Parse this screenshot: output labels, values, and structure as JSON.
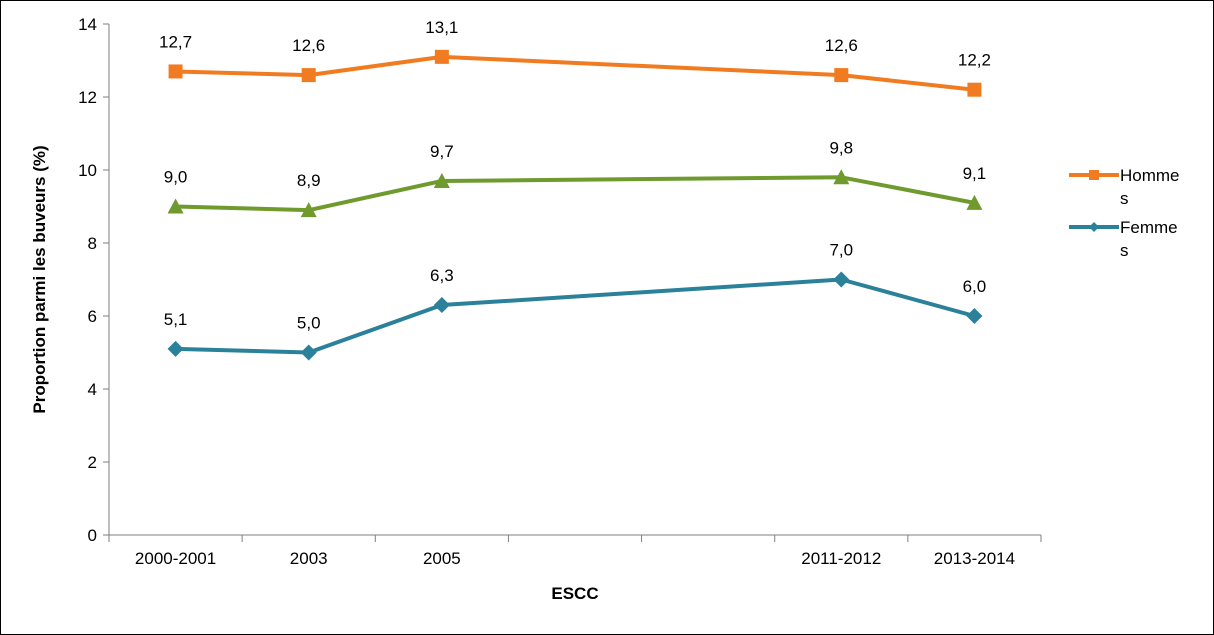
{
  "chart_data": {
    "type": "line",
    "categories": [
      "2000-2001",
      "2003",
      "2005",
      "",
      "",
      "2011-2012",
      "2013-2014"
    ],
    "series": [
      {
        "name": "Hommes",
        "values": [
          12.7,
          12.6,
          13.1,
          null,
          null,
          12.6,
          12.2
        ],
        "labels": [
          "12,7",
          "12,6",
          "13,1",
          "",
          "",
          "12,6",
          "12,2"
        ],
        "color": "#F07B20",
        "marker": "square"
      },
      {
        "name": "",
        "values": [
          9.0,
          8.9,
          9.7,
          null,
          null,
          9.8,
          9.1
        ],
        "labels": [
          "9,0",
          "8,9",
          "9,7",
          "",
          "",
          "9,8",
          "9,1"
        ],
        "color": "#6E9A2E",
        "marker": "triangle"
      },
      {
        "name": "Femmes",
        "values": [
          5.1,
          5.0,
          6.3,
          null,
          null,
          7.0,
          6.0
        ],
        "labels": [
          "5,1",
          "5,0",
          "6,3",
          "",
          "",
          "7,0",
          "6,0"
        ],
        "color": "#2A8199",
        "marker": "diamond"
      }
    ],
    "legend": [
      {
        "line1": "Homme",
        "line2": "s",
        "series": 0
      },
      {
        "line1": "Femme",
        "line2": "s",
        "series": 2
      }
    ],
    "xlabel": "ESCC",
    "ylabel": "Proportion parmi les buveurs (%)",
    "ylim": [
      0,
      14
    ],
    "yticks": [
      "0",
      "2",
      "4",
      "6",
      "8",
      "10",
      "12",
      "14"
    ],
    "grid": false,
    "legend_position": "right"
  }
}
